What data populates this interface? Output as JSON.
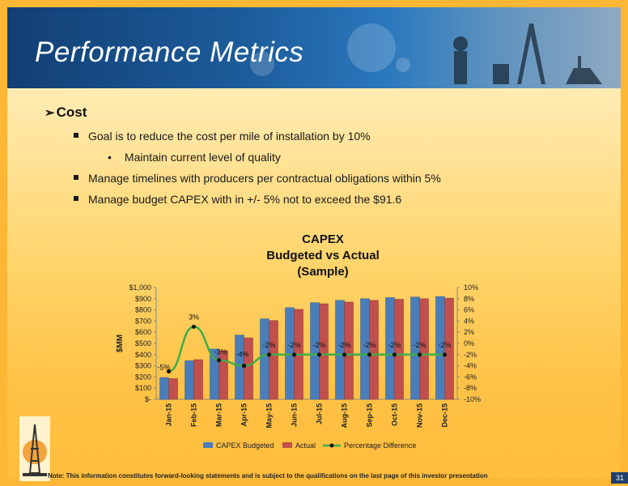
{
  "slide": {
    "title": "Performance Metrics",
    "heading": "Cost",
    "bullets": [
      "Goal is to reduce the cost per mile of installation by 10%",
      "Maintain current level of quality",
      "Manage timelines with producers per contractual obligations within 5%",
      "Manage budget CAPEX with in +/- 5% not to exceed the $91.6"
    ],
    "note": "Note: This information constitutes forward-looking statements and is subject to the qualifications on the last page of this investor presentation",
    "page_number": "31"
  },
  "colors": {
    "budget": "#4a7ebb",
    "actual": "#c0504d",
    "line": "#3fae49",
    "header": "#1d5d9c"
  },
  "chart_data": {
    "type": "bar",
    "title_lines": [
      "CAPEX",
      "Budgeted vs Actual",
      "(Sample)"
    ],
    "ylabel": "$MM",
    "categories": [
      "Jan-15",
      "Feb-15",
      "Mar-15",
      "Apr-15",
      "May-15",
      "Jun-15",
      "Jul-15",
      "Aug-15",
      "Sep-15",
      "Oct-15",
      "Nov-15",
      "Dec-15"
    ],
    "y_ticks": [
      "$1,000",
      "$900",
      "$800",
      "$700",
      "$600",
      "$500",
      "$400",
      "$300",
      "$200",
      "$100",
      "$-"
    ],
    "y2_ticks": [
      "10%",
      "8%",
      "6%",
      "4%",
      "2%",
      "0%",
      "-2%",
      "-4%",
      "-6%",
      "-8%",
      "-10%"
    ],
    "ylim": [
      0,
      1000
    ],
    "y2lim": [
      -10,
      10
    ],
    "series": [
      {
        "name": "CAPEX Budgeted",
        "type": "bar",
        "values": [
          195,
          345,
          450,
          575,
          720,
          820,
          865,
          885,
          900,
          910,
          915,
          920
        ]
      },
      {
        "name": "Actual",
        "type": "bar",
        "values": [
          185,
          355,
          435,
          550,
          705,
          805,
          855,
          870,
          885,
          895,
          900,
          905
        ]
      },
      {
        "name": "Percentage Difference",
        "type": "line",
        "axis": "secondary",
        "values": [
          -5,
          3,
          -3,
          -4,
          -2,
          -2,
          -2,
          -2,
          -2,
          -2,
          -2,
          -2
        ],
        "labels": [
          "-5%",
          "3%",
          "-3%",
          "-4%",
          "-2%",
          "-2%",
          "-2%",
          "-2%",
          "-2%",
          "-2%",
          "-2%",
          "-2%"
        ]
      }
    ],
    "legend": "bottom",
    "grid": false
  }
}
